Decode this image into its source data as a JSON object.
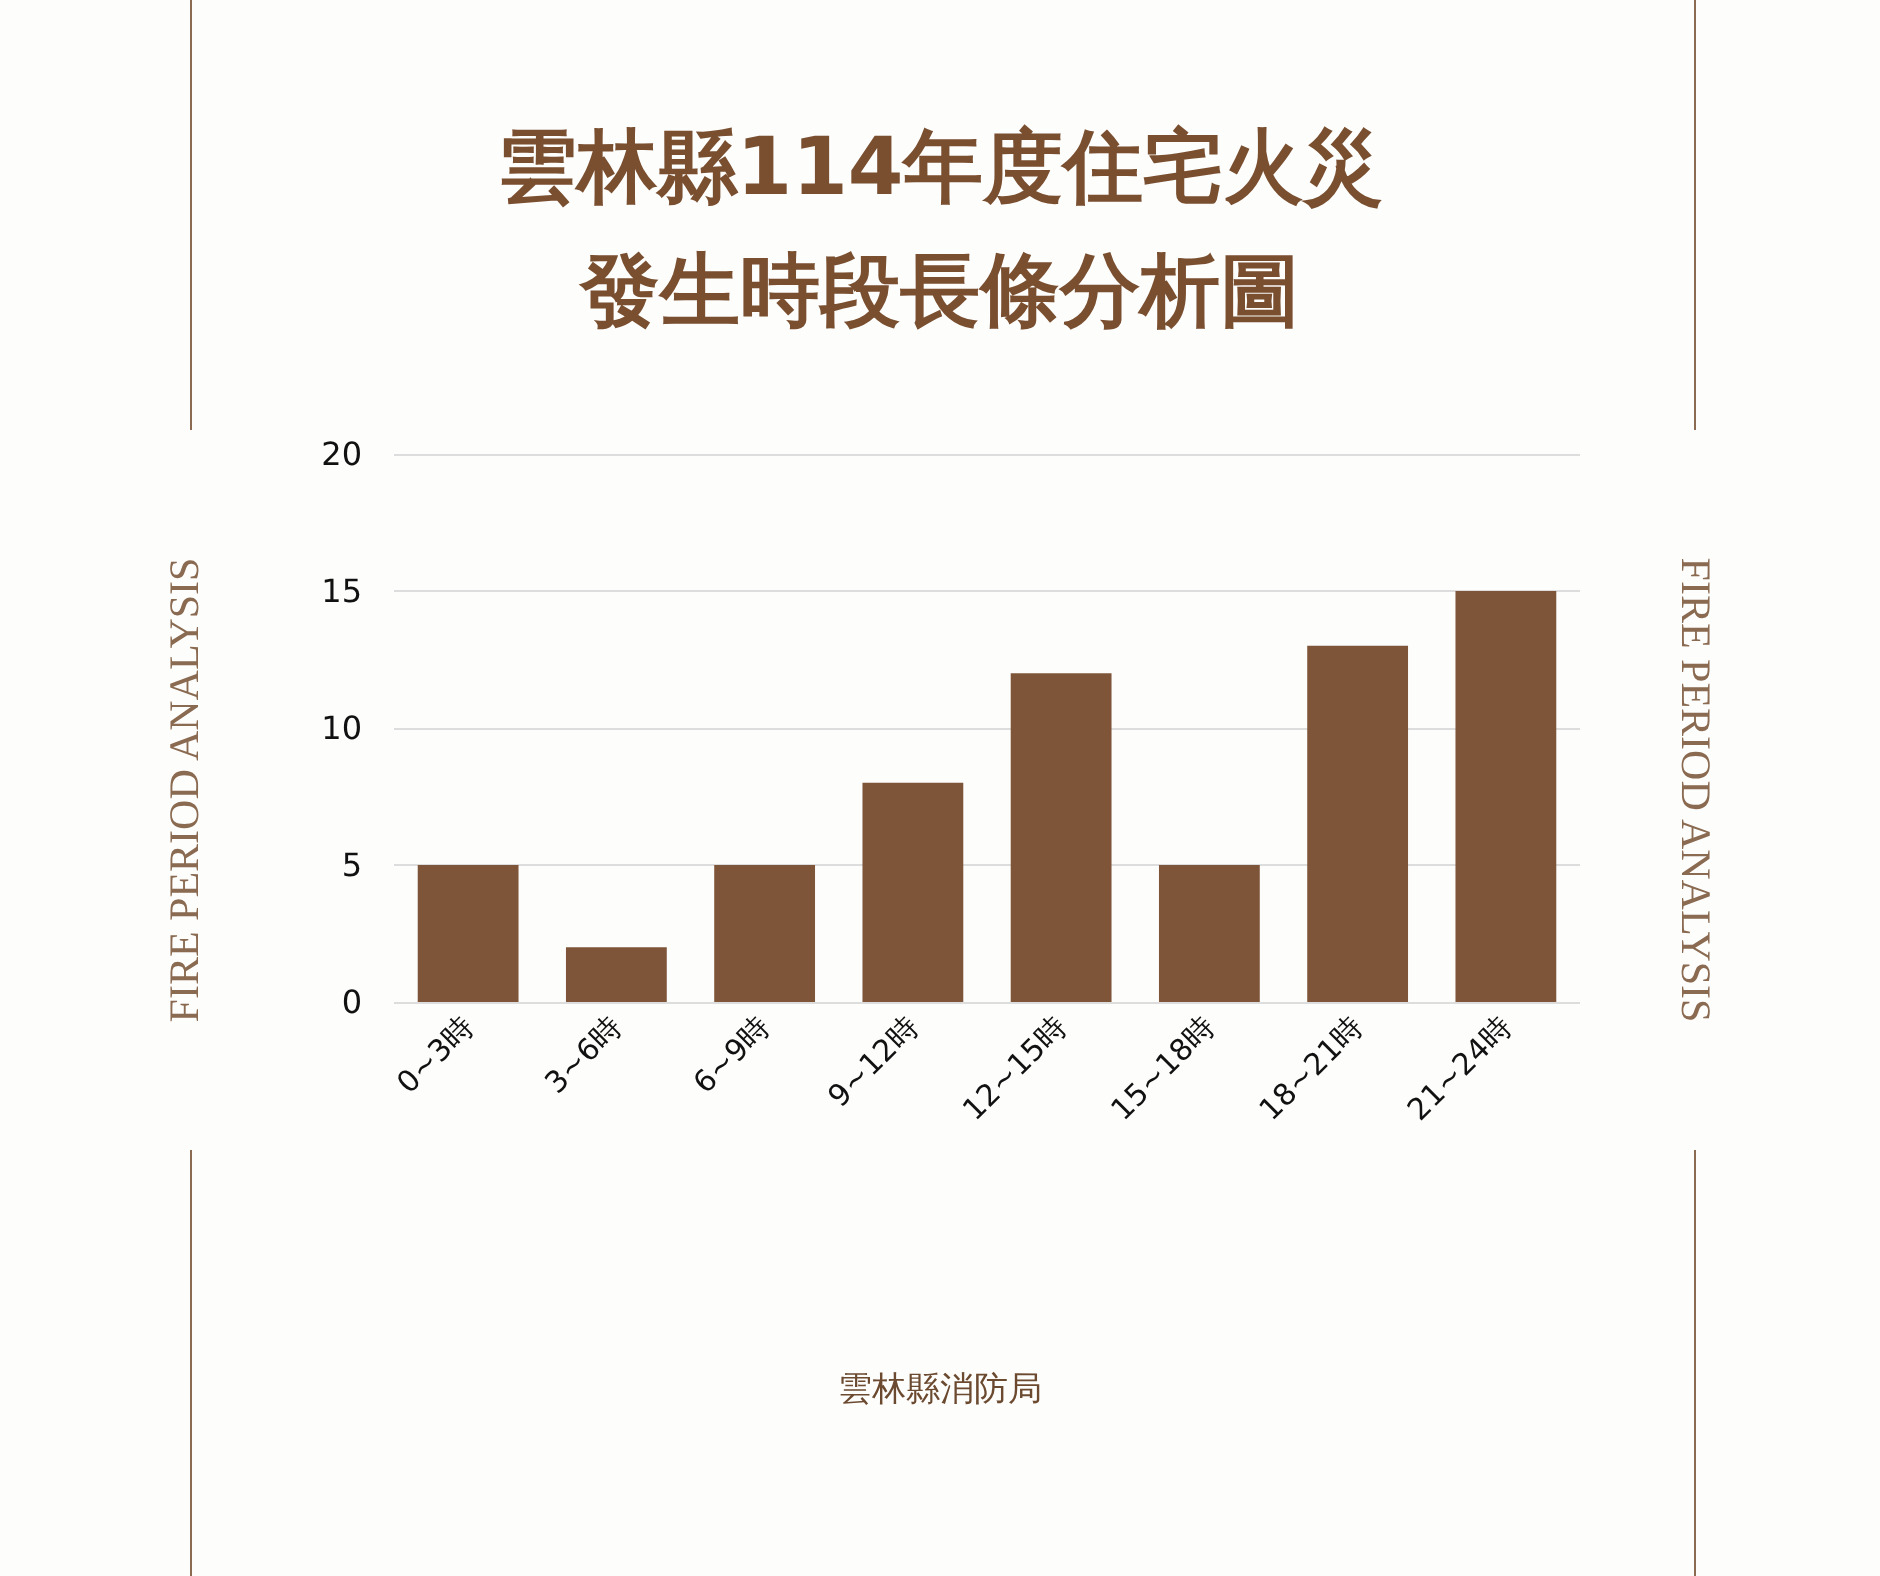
{
  "chart_data": {
    "type": "bar",
    "title": "雲林縣114年度住宅火災發生時段長條分析圖",
    "categories": [
      "0~3時",
      "3~6時",
      "6~9時",
      "9~12時",
      "12~15時",
      "15~18時",
      "18~21時",
      "21~24時"
    ],
    "values": [
      5,
      2,
      5,
      8,
      12,
      5,
      13,
      15
    ],
    "color": "#7f5539",
    "ylim": [
      0,
      20
    ],
    "yticks": [
      0,
      5,
      10,
      15,
      20
    ],
    "grid": "y",
    "annotations": [
      "FIRE PERIOD ANALYSIS",
      "FIRE PERIOD ANALYSIS",
      "雲林縣消防局"
    ]
  }
}
